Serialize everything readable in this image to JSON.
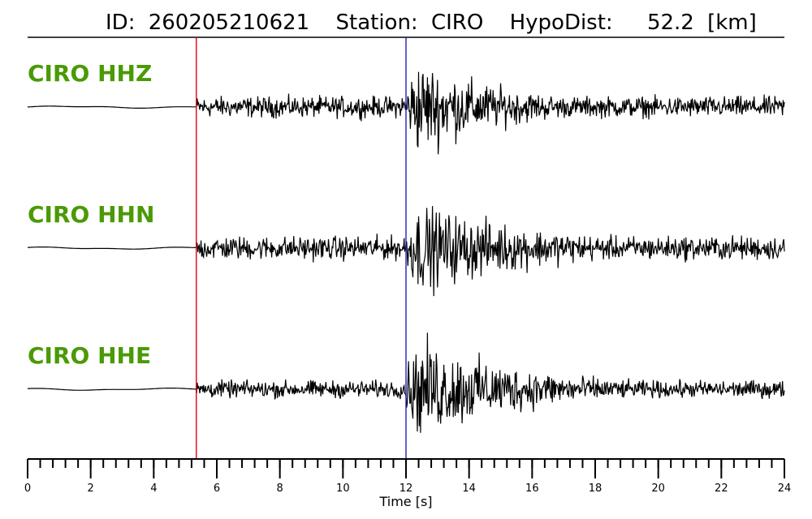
{
  "header": {
    "id_label": "ID:",
    "id_value": "260205210621",
    "station_label": "Station:",
    "station_value": "CIRO",
    "hypodist_label": "HypoDist:",
    "hypodist_value": "52.2",
    "hypodist_unit": "[km]"
  },
  "colors": {
    "label_green": "#4a9a06",
    "p_pick": "#e8000b",
    "s_pick": "#1f1fbf",
    "trace": "#000000"
  },
  "chart_data": {
    "type": "line",
    "title": "ID: 260205210621   Station: CIRO   HypoDist:    52.2 [km]",
    "xlabel": "Time [s]",
    "ylabel": "",
    "xlim": [
      0,
      24
    ],
    "major_ticks": [
      0,
      2,
      4,
      6,
      8,
      10,
      12,
      14,
      16,
      18,
      20,
      22,
      24
    ],
    "minor_tick_step": 0.4,
    "grid": false,
    "picks": [
      {
        "phase": "P",
        "time": 5.35,
        "color": "#e8000b"
      },
      {
        "phase": "S",
        "time": 12.0,
        "color": "#1f1fbf"
      }
    ],
    "series": [
      {
        "name": "CIRO HHZ",
        "pre_event_end": 5.35,
        "noise_level": 0.22,
        "peak_time": 12.35,
        "peak_amplitude": 1.0,
        "decay": 0.32
      },
      {
        "name": "CIRO HHN",
        "pre_event_end": 5.35,
        "noise_level": 0.25,
        "peak_time": 12.5,
        "peak_amplitude": 0.9,
        "decay": 0.22
      },
      {
        "name": "CIRO HHE",
        "pre_event_end": 5.35,
        "noise_level": 0.18,
        "peak_time": 12.6,
        "peak_amplitude": 1.0,
        "decay": 0.26
      }
    ]
  }
}
